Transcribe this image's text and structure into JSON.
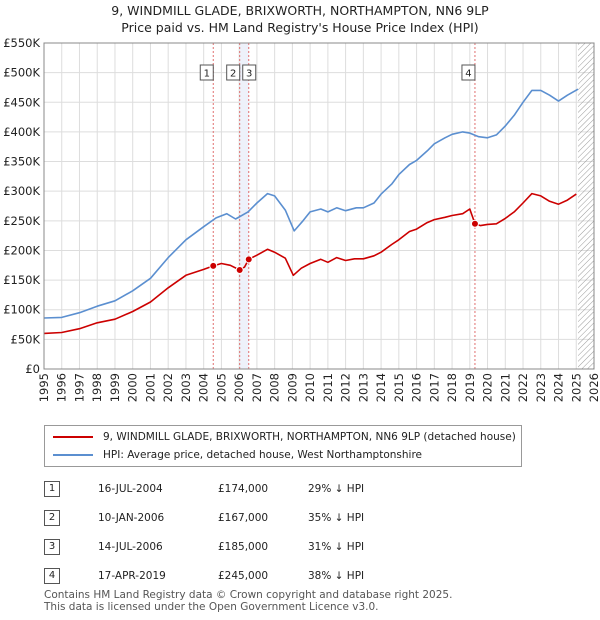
{
  "chart_data": {
    "type": "line",
    "title": "9, WINDMILL GLADE, BRIXWORTH, NORTHAMPTON, NN6 9LP",
    "subtitle": "Price paid vs. HM Land Registry's House Price Index (HPI)",
    "xlim": [
      1995,
      2026
    ],
    "ylim": [
      0,
      550000
    ],
    "x_ticks": [
      1995,
      1996,
      1997,
      1998,
      1999,
      2000,
      2001,
      2002,
      2003,
      2004,
      2005,
      2006,
      2007,
      2008,
      2009,
      2010,
      2011,
      2012,
      2013,
      2014,
      2015,
      2016,
      2017,
      2018,
      2019,
      2020,
      2021,
      2022,
      2023,
      2024,
      2025,
      2026
    ],
    "y_ticks": [
      0,
      50000,
      100000,
      150000,
      200000,
      250000,
      300000,
      350000,
      400000,
      450000,
      500000,
      550000
    ],
    "y_tick_labels": [
      "£0",
      "£50K",
      "£100K",
      "£150K",
      "£200K",
      "£250K",
      "£300K",
      "£350K",
      "£400K",
      "£450K",
      "£500K",
      "£550K"
    ],
    "forecast_start": 2025.1,
    "series": [
      {
        "name": "9, WINDMILL GLADE, BRIXWORTH, NORTHAMPTON, NN6 9LP (detached house)",
        "color": "#cc0000",
        "points": [
          [
            1995,
            60000
          ],
          [
            1996,
            61500
          ],
          [
            1997,
            68000
          ],
          [
            1998,
            78000
          ],
          [
            1999,
            84000
          ],
          [
            2000,
            97000
          ],
          [
            2001,
            113000
          ],
          [
            2002,
            137000
          ],
          [
            2003,
            158000
          ],
          [
            2004,
            168000
          ],
          [
            2004.54,
            174000
          ],
          [
            2005,
            178000
          ],
          [
            2005.5,
            175000
          ],
          [
            2006.03,
            167000
          ],
          [
            2006.3,
            172000
          ],
          [
            2006.54,
            185000
          ],
          [
            2007,
            192000
          ],
          [
            2007.6,
            202000
          ],
          [
            2008,
            197000
          ],
          [
            2008.6,
            187000
          ],
          [
            2009.05,
            158000
          ],
          [
            2009.5,
            170000
          ],
          [
            2010,
            178000
          ],
          [
            2010.6,
            185000
          ],
          [
            2011,
            180000
          ],
          [
            2011.5,
            188000
          ],
          [
            2012,
            183000
          ],
          [
            2012.5,
            186000
          ],
          [
            2013,
            186000
          ],
          [
            2013.6,
            191000
          ],
          [
            2014,
            197000
          ],
          [
            2014.6,
            210000
          ],
          [
            2015,
            218000
          ],
          [
            2015.6,
            232000
          ],
          [
            2016,
            236000
          ],
          [
            2016.6,
            247000
          ],
          [
            2017,
            252000
          ],
          [
            2017.6,
            256000
          ],
          [
            2018,
            259000
          ],
          [
            2018.6,
            262000
          ],
          [
            2019.0,
            270000
          ],
          [
            2019.29,
            245000
          ],
          [
            2019.6,
            242000
          ],
          [
            2020,
            244000
          ],
          [
            2020.5,
            245000
          ],
          [
            2021,
            254000
          ],
          [
            2021.5,
            265000
          ],
          [
            2022,
            280000
          ],
          [
            2022.5,
            296000
          ],
          [
            2023,
            292000
          ],
          [
            2023.5,
            283000
          ],
          [
            2024,
            278000
          ],
          [
            2024.5,
            285000
          ],
          [
            2025.0,
            295000
          ]
        ]
      },
      {
        "name": "HPI: Average price, detached house, West Northamptonshire",
        "color": "#5b8fd0",
        "points": [
          [
            1995,
            86000
          ],
          [
            1996,
            87000
          ],
          [
            1997,
            95000
          ],
          [
            1998,
            106000
          ],
          [
            1999,
            115000
          ],
          [
            2000,
            132000
          ],
          [
            2001,
            153000
          ],
          [
            2002,
            188000
          ],
          [
            2003,
            218000
          ],
          [
            2004,
            240000
          ],
          [
            2004.7,
            255000
          ],
          [
            2005.3,
            262000
          ],
          [
            2005.8,
            253000
          ],
          [
            2006.5,
            265000
          ],
          [
            2007,
            280000
          ],
          [
            2007.6,
            296000
          ],
          [
            2008,
            292000
          ],
          [
            2008.6,
            268000
          ],
          [
            2009.1,
            233000
          ],
          [
            2009.6,
            250000
          ],
          [
            2010,
            265000
          ],
          [
            2010.6,
            270000
          ],
          [
            2011,
            265000
          ],
          [
            2011.5,
            272000
          ],
          [
            2012,
            267000
          ],
          [
            2012.6,
            272000
          ],
          [
            2013,
            272000
          ],
          [
            2013.6,
            280000
          ],
          [
            2014,
            295000
          ],
          [
            2014.6,
            312000
          ],
          [
            2015,
            328000
          ],
          [
            2015.6,
            345000
          ],
          [
            2016,
            352000
          ],
          [
            2016.6,
            368000
          ],
          [
            2017,
            380000
          ],
          [
            2017.6,
            390000
          ],
          [
            2018,
            396000
          ],
          [
            2018.6,
            400000
          ],
          [
            2019,
            398000
          ],
          [
            2019.5,
            392000
          ],
          [
            2020,
            390000
          ],
          [
            2020.5,
            395000
          ],
          [
            2021,
            410000
          ],
          [
            2021.5,
            428000
          ],
          [
            2022,
            450000
          ],
          [
            2022.5,
            470000
          ],
          [
            2023,
            470000
          ],
          [
            2023.5,
            462000
          ],
          [
            2024,
            452000
          ],
          [
            2024.5,
            462000
          ],
          [
            2025.1,
            472000
          ]
        ]
      }
    ],
    "sales": [
      {
        "label": "1",
        "x": 2004.54,
        "price": 174000
      },
      {
        "label": "2",
        "x": 2006.03,
        "price": 167000
      },
      {
        "label": "3",
        "x": 2006.54,
        "price": 185000
      },
      {
        "label": "4",
        "x": 2019.29,
        "price": 245000
      }
    ]
  },
  "legend": {
    "property": "9, WINDMILL GLADE, BRIXWORTH, NORTHAMPTON, NN6 9LP (detached house)",
    "hpi": "HPI: Average price, detached house, West Northamptonshire"
  },
  "transactions": [
    {
      "num": "1",
      "date": "16-JUL-2004",
      "price": "£174,000",
      "diff": "29% ↓ HPI"
    },
    {
      "num": "2",
      "date": "10-JAN-2006",
      "price": "£167,000",
      "diff": "35% ↓ HPI"
    },
    {
      "num": "3",
      "date": "14-JUL-2006",
      "price": "£185,000",
      "diff": "31% ↓ HPI"
    },
    {
      "num": "4",
      "date": "17-APR-2019",
      "price": "£245,000",
      "diff": "38% ↓ HPI"
    }
  ],
  "footer": {
    "line1": "Contains HM Land Registry data © Crown copyright and database right 2025.",
    "line2": "This data is licensed under the Open Government Licence v3.0."
  }
}
